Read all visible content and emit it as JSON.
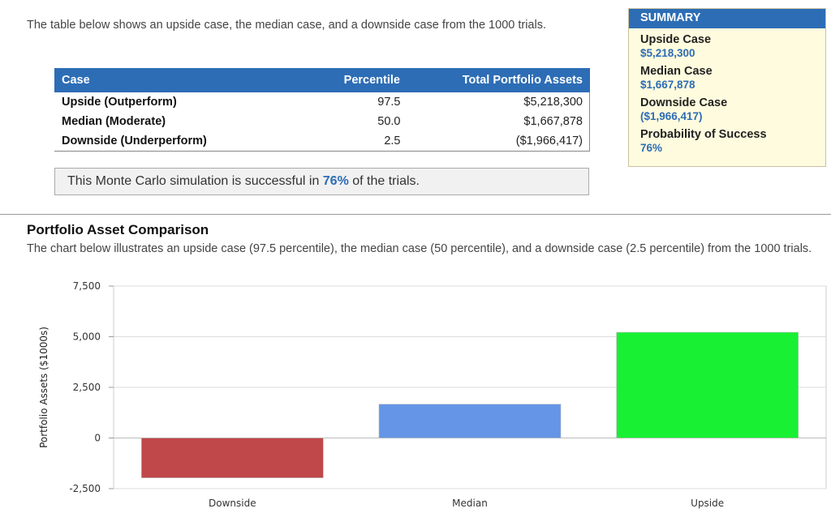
{
  "intro_text": "The table below shows an upside case, the median case, and a downside case from the 1000 trials.",
  "table": {
    "headers": {
      "case": "Case",
      "percentile": "Percentile",
      "assets": "Total Portfolio Assets"
    },
    "rows": [
      {
        "case": "Upside (Outperform)",
        "percentile": "97.5",
        "assets": "$5,218,300"
      },
      {
        "case": "Median (Moderate)",
        "percentile": "50.0",
        "assets": "$1,667,878"
      },
      {
        "case": "Downside (Underperform)",
        "percentile": "2.5",
        "assets": "($1,966,417)"
      }
    ]
  },
  "success": {
    "prefix": "This Monte Carlo simulation is successful in ",
    "pct": "76%",
    "suffix": " of the trials."
  },
  "summary": {
    "title": "SUMMARY",
    "items": [
      {
        "label": "Upside Case",
        "value": "$5,218,300"
      },
      {
        "label": "Median Case",
        "value": "$1,667,878"
      },
      {
        "label": "Downside Case",
        "value": "($1,966,417)"
      },
      {
        "label": "Probability of Success",
        "value": "76%"
      }
    ]
  },
  "section": {
    "title": "Portfolio Asset Comparison",
    "description": "The chart below illustrates an upside case (97.5 percentile), the median case (50 percentile), and a downside case (2.5 percentile) from the 1000 trials."
  },
  "chart_data": {
    "type": "bar",
    "categories": [
      "Downside",
      "Median",
      "Upside"
    ],
    "values": [
      -1966.417,
      1667.878,
      5218.3
    ],
    "colors": [
      "#c0474a",
      "#6495e6",
      "#18f034"
    ],
    "ylabel": "Portfolio Assets ($1000s)",
    "ylim": [
      -2500,
      7500
    ],
    "yticks": [
      -2500,
      0,
      2500,
      5000,
      7500
    ],
    "ytick_labels": [
      "-2,500",
      "0",
      "2,500",
      "5,000",
      "7,500"
    ],
    "grid": true
  }
}
